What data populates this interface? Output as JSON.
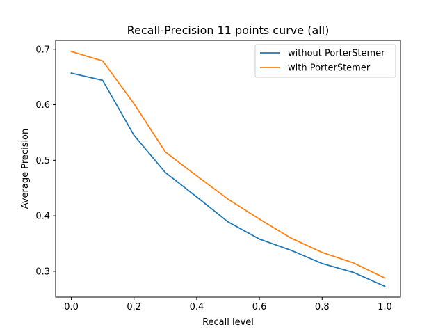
{
  "chart_data": {
    "type": "line",
    "title": "Recall-Precision 11 points curve (all)",
    "xlabel": "Recall level",
    "ylabel": "Average Precision",
    "xlim": [
      -0.05,
      1.05
    ],
    "ylim": [
      0.2535,
      0.716
    ],
    "x": [
      0.0,
      0.1,
      0.2,
      0.3,
      0.4,
      0.5,
      0.6,
      0.7,
      0.8,
      0.9,
      1.0
    ],
    "xticks": [
      0.0,
      0.2,
      0.4,
      0.6,
      0.8,
      1.0
    ],
    "xtick_labels": [
      "0.0",
      "0.2",
      "0.4",
      "0.6",
      "0.8",
      "1.0"
    ],
    "yticks": [
      0.3,
      0.4,
      0.5,
      0.6,
      0.7
    ],
    "ytick_labels": [
      "0.3",
      "0.4",
      "0.5",
      "0.6",
      "0.7"
    ],
    "series": [
      {
        "name": "without PorterStemer",
        "color": "#1f77b4",
        "values": [
          0.657,
          0.644,
          0.545,
          0.478,
          0.434,
          0.389,
          0.358,
          0.338,
          0.314,
          0.298,
          0.273
        ]
      },
      {
        "name": "with PorterStemer",
        "color": "#ff7f0e",
        "values": [
          0.696,
          0.679,
          0.602,
          0.515,
          0.472,
          0.43,
          0.394,
          0.36,
          0.334,
          0.315,
          0.288
        ]
      }
    ],
    "grid": false,
    "legend_position": "top-right"
  }
}
